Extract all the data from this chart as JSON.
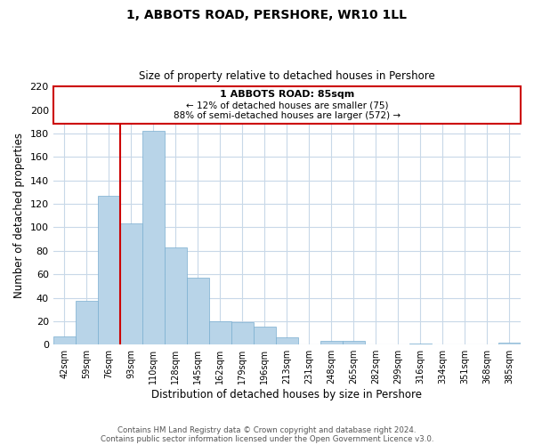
{
  "title": "1, ABBOTS ROAD, PERSHORE, WR10 1LL",
  "subtitle": "Size of property relative to detached houses in Pershore",
  "xlabel": "Distribution of detached houses by size in Pershore",
  "ylabel": "Number of detached properties",
  "bar_color": "#b8d4e8",
  "bar_edge_color": "#7aaed0",
  "categories": [
    "42sqm",
    "59sqm",
    "76sqm",
    "93sqm",
    "110sqm",
    "128sqm",
    "145sqm",
    "162sqm",
    "179sqm",
    "196sqm",
    "213sqm",
    "231sqm",
    "248sqm",
    "265sqm",
    "282sqm",
    "299sqm",
    "316sqm",
    "334sqm",
    "351sqm",
    "368sqm",
    "385sqm"
  ],
  "values": [
    7,
    37,
    127,
    103,
    182,
    83,
    57,
    20,
    19,
    15,
    6,
    0,
    3,
    3,
    0,
    0,
    1,
    0,
    0,
    0,
    2
  ],
  "ylim": [
    0,
    220
  ],
  "yticks": [
    0,
    20,
    40,
    60,
    80,
    100,
    120,
    140,
    160,
    180,
    200,
    220
  ],
  "vline_color": "#cc0000",
  "annotation_title": "1 ABBOTS ROAD: 85sqm",
  "annotation_line1": "← 12% of detached houses are smaller (75)",
  "annotation_line2": "88% of semi-detached houses are larger (572) →",
  "annotation_box_color": "#cc0000",
  "footer_line1": "Contains HM Land Registry data © Crown copyright and database right 2024.",
  "footer_line2": "Contains public sector information licensed under the Open Government Licence v3.0.",
  "background_color": "#ffffff",
  "grid_color": "#c8d8e8"
}
